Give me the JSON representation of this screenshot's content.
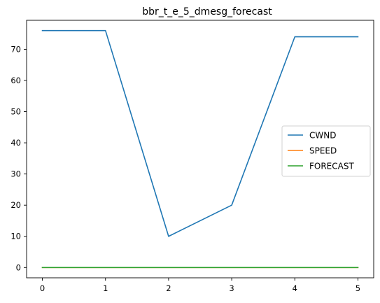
{
  "chart_data": {
    "type": "line",
    "title": "bbr_t_e_5_dmesg_forecast",
    "xlabel": "",
    "ylabel": "",
    "x": [
      0,
      1,
      2,
      3,
      4,
      5
    ],
    "xlim": [
      -0.25,
      5.25
    ],
    "ylim": [
      -3.3,
      79.3
    ],
    "xticks": [
      0,
      1,
      2,
      3,
      4,
      5
    ],
    "yticks": [
      0,
      10,
      20,
      30,
      40,
      50,
      60,
      70
    ],
    "grid": false,
    "legend_position": "center-right",
    "series": [
      {
        "name": "CWND",
        "color": "#1f77b4",
        "values": [
          76,
          76,
          10,
          20,
          74,
          74
        ]
      },
      {
        "name": "SPEED",
        "color": "#ff7f0e",
        "values": [
          0,
          0,
          0,
          0,
          0,
          0
        ]
      },
      {
        "name": "FORECAST",
        "color": "#2ca02c",
        "values": [
          0,
          0,
          0,
          0,
          0,
          0
        ]
      }
    ]
  }
}
